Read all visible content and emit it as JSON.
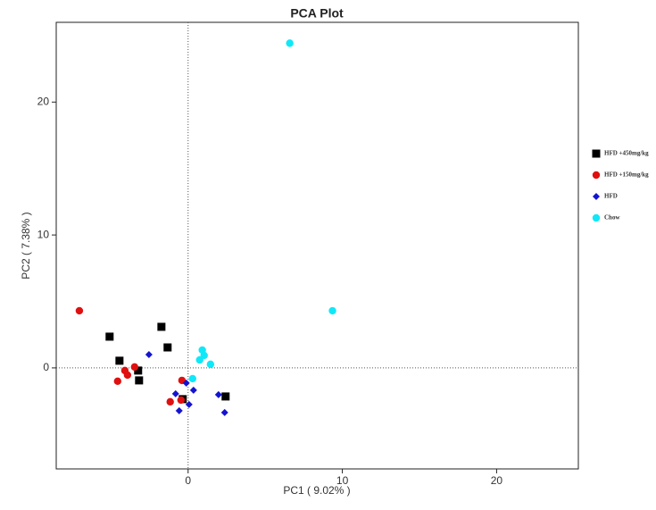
{
  "chart_data": {
    "type": "scatter",
    "title": "PCA Plot",
    "x_label": "PC1 ( 9.02% )",
    "y_label": "PC2 ( 7.38% )",
    "xlim": [
      -8.55,
      25.3
    ],
    "ylim": [
      -7.6,
      26
    ],
    "xticks": [
      0,
      10,
      20
    ],
    "yticks": [
      0,
      10,
      20
    ],
    "legend_position": "right",
    "series": [
      {
        "name": "HFD +450mg/kg",
        "color": "#000000",
        "marker": "square",
        "x": [
          -5.09,
          -4.45,
          -3.24,
          -3.18,
          -1.73,
          -1.33,
          -0.35,
          2.43
        ],
        "values": [
          2.35,
          0.54,
          -0.2,
          -0.94,
          3.09,
          1.54,
          -2.35,
          -2.15
        ]
      },
      {
        "name": "HFD +150mg/kg",
        "color": "#e01010",
        "marker": "circle",
        "x": [
          -7.05,
          -4.57,
          -4.1,
          -3.93,
          -3.47,
          -1.16,
          -0.46,
          -0.4
        ],
        "values": [
          4.3,
          -1.0,
          -0.2,
          -0.54,
          0.07,
          -2.55,
          -2.42,
          -0.94
        ]
      },
      {
        "name": "HFD",
        "color": "#1414d0",
        "marker": "diamond",
        "x": [
          -2.54,
          -0.81,
          -0.58,
          -0.12,
          0.06,
          0.35,
          1.97,
          2.37
        ],
        "values": [
          1.0,
          -1.95,
          -3.22,
          -1.14,
          -2.75,
          -1.68,
          -2.01,
          -3.36
        ]
      },
      {
        "name": "Chow",
        "color": "#10e8f8",
        "marker": "circle",
        "x": [
          6.59,
          9.36,
          0.29,
          0.75,
          0.92,
          1.04,
          1.45
        ],
        "values": [
          24.43,
          4.3,
          -0.81,
          0.6,
          1.34,
          0.94,
          0.27
        ]
      }
    ]
  }
}
